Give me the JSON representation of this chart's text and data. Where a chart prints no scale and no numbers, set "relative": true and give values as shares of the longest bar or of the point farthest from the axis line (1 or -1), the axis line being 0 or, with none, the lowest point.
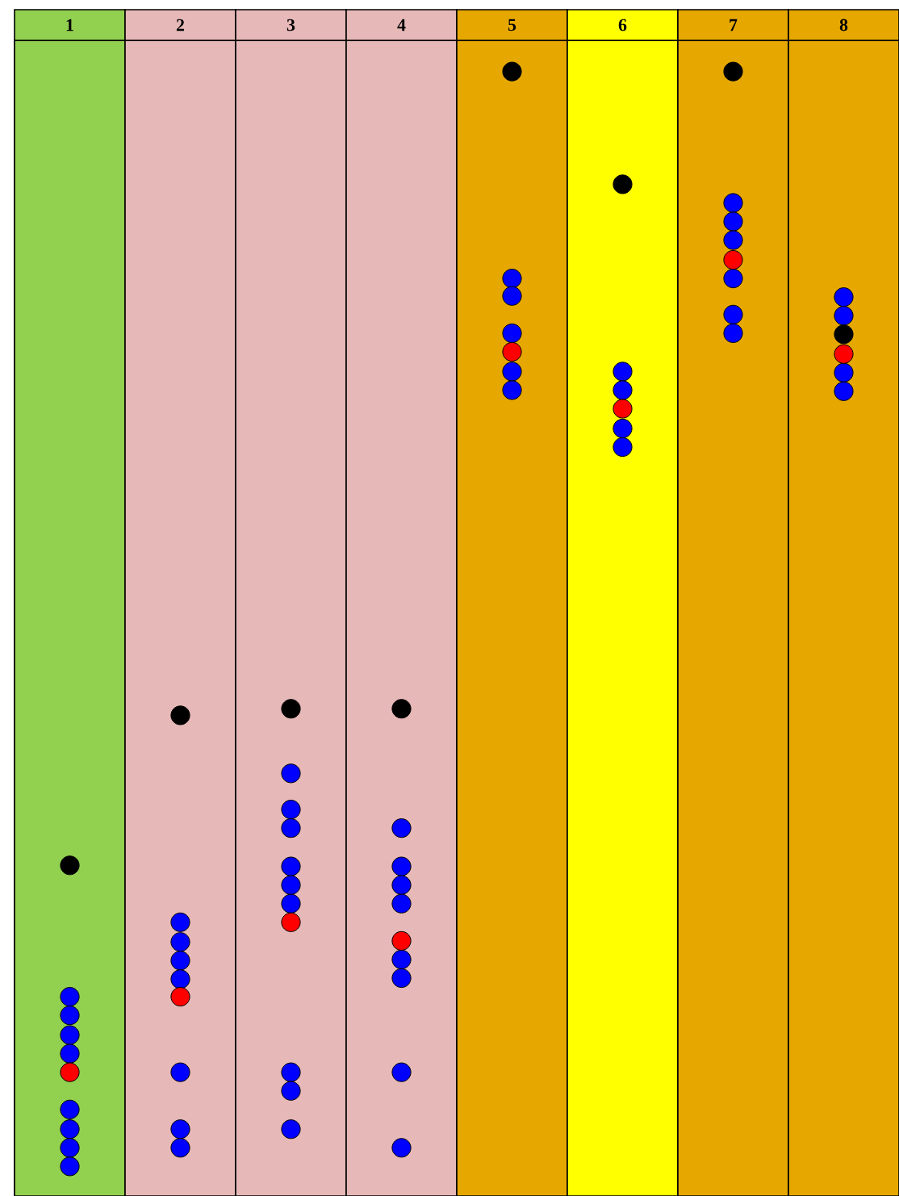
{
  "chart_data": {
    "type": "scatter",
    "relative": true,
    "marker": "circle",
    "categories": [
      "1",
      "2",
      "3",
      "4",
      "5",
      "6",
      "7",
      "8"
    ],
    "bands": [
      {
        "axis": "x",
        "from": "1",
        "to": "1",
        "color": "#92d050"
      },
      {
        "axis": "x",
        "from": "2",
        "to": "2",
        "color": "#e6b8b7"
      },
      {
        "axis": "x",
        "from": "3",
        "to": "3",
        "color": "#e6b8b7"
      },
      {
        "axis": "x",
        "from": "4",
        "to": "4",
        "color": "#e6b8b7"
      },
      {
        "axis": "x",
        "from": "5",
        "to": "5",
        "color": "#e6a800"
      },
      {
        "axis": "x",
        "from": "6",
        "to": "6",
        "color": "#ffff00"
      },
      {
        "axis": "x",
        "from": "7",
        "to": "7",
        "color": "#e6a800"
      },
      {
        "axis": "x",
        "from": "8",
        "to": "8",
        "color": "#e6a800"
      }
    ],
    "series": [
      {
        "color": "#0000ff",
        "x": [
          "1",
          "1",
          "1",
          "1",
          "1",
          "1",
          "1",
          "1",
          "2",
          "2",
          "2",
          "2",
          "2",
          "2",
          "2",
          "3",
          "3",
          "3",
          "3",
          "3",
          "3",
          "3",
          "3",
          "3",
          "4",
          "4",
          "4",
          "4",
          "4",
          "4",
          "4",
          "4",
          "5",
          "5",
          "5",
          "5",
          "5",
          "6",
          "6",
          "6",
          "6",
          "7",
          "7",
          "7",
          "7",
          "7",
          "7",
          "8",
          "8",
          "8",
          "8"
        ],
        "values": [
          0.155,
          0.138,
          0.12,
          0.103,
          0.052,
          0.034,
          0.017,
          0,
          0.223,
          0.205,
          0.188,
          0.171,
          0.086,
          0.034,
          0.017,
          0.359,
          0.326,
          0.309,
          0.274,
          0.257,
          0.24,
          0.086,
          0.069,
          0.034,
          0.309,
          0.274,
          0.257,
          0.24,
          0.189,
          0.172,
          0.086,
          0.017,
          0.811,
          0.795,
          0.761,
          0.726,
          0.709,
          0.726,
          0.709,
          0.674,
          0.657,
          0.88,
          0.863,
          0.846,
          0.811,
          0.778,
          0.761,
          0.794,
          0.777,
          0.725,
          0.708
        ]
      },
      {
        "color": "#ff0000",
        "x": [
          "1",
          "2",
          "3",
          "4",
          "5",
          "6",
          "7",
          "8"
        ],
        "values": [
          0.086,
          0.155,
          0.223,
          0.206,
          0.744,
          0.692,
          0.828,
          0.742
        ]
      },
      {
        "color": "#000000",
        "x": [
          "1",
          "2",
          "3",
          "4",
          "5",
          "6",
          "7",
          "8"
        ],
        "values": [
          0.275,
          0.412,
          0.418,
          0.418,
          1.0,
          0.897,
          1.0,
          0.76
        ]
      }
    ]
  }
}
